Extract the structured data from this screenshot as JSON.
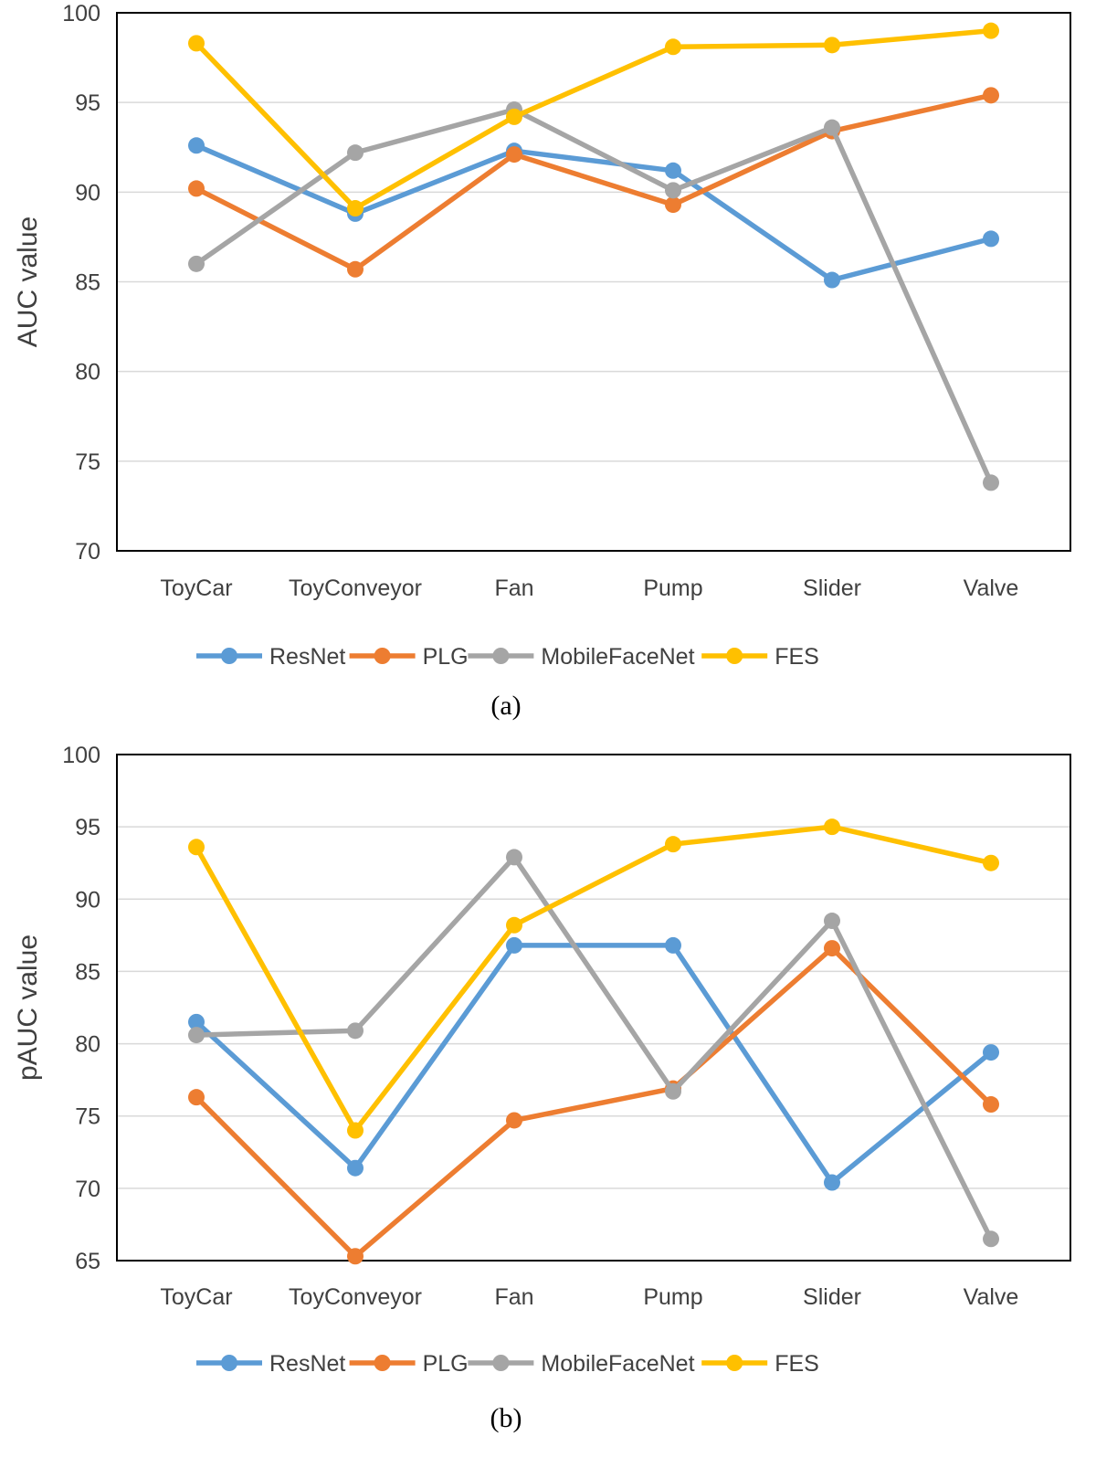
{
  "chart_data": [
    {
      "type": "line",
      "caption": "(a)",
      "ylabel": "AUC value",
      "ylim": [
        70,
        100
      ],
      "yticks": [
        70,
        75,
        80,
        85,
        90,
        95,
        100
      ],
      "categories": [
        "ToyCar",
        "ToyConveyor",
        "Fan",
        "Pump",
        "Slider",
        "Valve"
      ],
      "grid": true,
      "legend_position": "bottom",
      "series": [
        {
          "name": "ResNet",
          "color": "#5B9BD5",
          "values": [
            92.6,
            88.8,
            92.3,
            91.2,
            85.1,
            87.4
          ]
        },
        {
          "name": "PLG",
          "color": "#ED7D31",
          "values": [
            90.2,
            85.7,
            92.1,
            89.3,
            93.4,
            95.4
          ]
        },
        {
          "name": "MobileFaceNet",
          "color": "#A5A5A5",
          "values": [
            86.0,
            92.2,
            94.6,
            90.1,
            93.6,
            73.8
          ]
        },
        {
          "name": "FES",
          "color": "#FFC000",
          "values": [
            98.3,
            89.1,
            94.2,
            98.1,
            98.2,
            99.0
          ]
        }
      ]
    },
    {
      "type": "line",
      "caption": "(b)",
      "ylabel": "pAUC value",
      "ylim": [
        65,
        100
      ],
      "yticks": [
        65,
        70,
        75,
        80,
        85,
        90,
        95,
        100
      ],
      "categories": [
        "ToyCar",
        "ToyConveyor",
        "Fan",
        "Pump",
        "Slider",
        "Valve"
      ],
      "grid": true,
      "legend_position": "bottom",
      "series": [
        {
          "name": "ResNet",
          "color": "#5B9BD5",
          "values": [
            81.5,
            71.4,
            86.8,
            86.8,
            70.4,
            79.4
          ]
        },
        {
          "name": "PLG",
          "color": "#ED7D31",
          "values": [
            76.3,
            65.3,
            74.7,
            76.9,
            86.6,
            75.8
          ]
        },
        {
          "name": "MobileFaceNet",
          "color": "#A5A5A5",
          "values": [
            80.6,
            80.9,
            92.9,
            76.7,
            88.5,
            66.5
          ]
        },
        {
          "name": "FES",
          "color": "#FFC000",
          "values": [
            93.6,
            74.0,
            88.2,
            93.8,
            95.0,
            92.5
          ]
        }
      ]
    }
  ]
}
